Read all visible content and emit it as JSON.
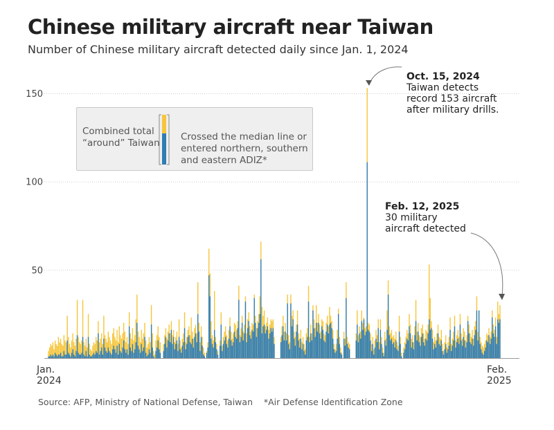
{
  "title": "Chinese military aircraft near Taiwan",
  "subtitle": "Number of Chinese military aircraft detected daily since Jan. 1, 2024",
  "legend": {
    "total_label_1": "Combined total",
    "total_label_2": "“around” Taiwan",
    "adiz_label_1": "Crossed the median line or",
    "adiz_label_2": "entered northern, southern",
    "adiz_label_3": "and eastern ADIZ*"
  },
  "annotations": {
    "oct": {
      "date": "Oct. 15, 2024",
      "line1": "Taiwan detects",
      "line2": "record 153 aircraft",
      "line3": "after military drills."
    },
    "feb": {
      "date": "Feb. 12, 2025",
      "line1": "30 military",
      "line2": "aircraft detected"
    }
  },
  "x_labels": {
    "start_1": "Jan.",
    "start_2": "2024",
    "end_1": "Feb.",
    "end_2": "2025"
  },
  "source": "Source: AFP, Ministry of National Defense, Taiwan    *Air Defense Identification Zone",
  "colors": {
    "total": "#f6c53a",
    "adiz": "#2f7db5",
    "grid": "#cccccc"
  },
  "chart_data": {
    "type": "bar",
    "stacked_overlay": true,
    "x_start": "2024-01-01",
    "x_end": "2025-02-12",
    "ylim": [
      0,
      155
    ],
    "yticks": [
      50,
      100,
      150
    ],
    "grid": true,
    "series": [
      {
        "name": "Combined total “around” Taiwan",
        "values": [
          4,
          6,
          8,
          7,
          9,
          5,
          10,
          8,
          7,
          12,
          9,
          11,
          8,
          7,
          13,
          10,
          9,
          24,
          12,
          8,
          6,
          10,
          14,
          9,
          7,
          11,
          33,
          12,
          9,
          8,
          10,
          33,
          9,
          7,
          11,
          6,
          25,
          8,
          5,
          4,
          7,
          9,
          8,
          12,
          10,
          21,
          9,
          11,
          14,
          8,
          24,
          13,
          11,
          9,
          15,
          12,
          10,
          8,
          14,
          17,
          12,
          10,
          16,
          9,
          18,
          13,
          11,
          14,
          20,
          15,
          9,
          12,
          8,
          26,
          14,
          11,
          17,
          10,
          13,
          22,
          36,
          15,
          12,
          9,
          16,
          11,
          14,
          20,
          10,
          6,
          8,
          12,
          9,
          30,
          14,
          4,
          2,
          10,
          13,
          18,
          12,
          9,
          0,
          0,
          8,
          13,
          17,
          11,
          15,
          19,
          14,
          21,
          13,
          16,
          9,
          12,
          15,
          8,
          22,
          10,
          6,
          11,
          14,
          26,
          9,
          12,
          16,
          18,
          13,
          23,
          15,
          11,
          17,
          19,
          14,
          43,
          20,
          9,
          18,
          12,
          6,
          3,
          0,
          4,
          9,
          62,
          48,
          21,
          13,
          10,
          38,
          12,
          8,
          4,
          0,
          10,
          26,
          7,
          12,
          15,
          18,
          13,
          10,
          16,
          23,
          15,
          11,
          14,
          20,
          19,
          16,
          21,
          41,
          13,
          17,
          24,
          15,
          19,
          35,
          14,
          22,
          26,
          18,
          15,
          20,
          19,
          36,
          24,
          17,
          21,
          25,
          35,
          66,
          29,
          24,
          27,
          18,
          20,
          23,
          16,
          19,
          22,
          21,
          22,
          12,
          0,
          0,
          0,
          0,
          0,
          12,
          18,
          24,
          15,
          20,
          14,
          36,
          13,
          9,
          36,
          24,
          27,
          15,
          12,
          19,
          27,
          14,
          11,
          16,
          9,
          12,
          8,
          5,
          14,
          17,
          41,
          12,
          19,
          14,
          30,
          22,
          17,
          30,
          20,
          25,
          19,
          15,
          22,
          21,
          14,
          13,
          20,
          24,
          18,
          29,
          24,
          21,
          16,
          8,
          5,
          8,
          16,
          28,
          12,
          6,
          3,
          0,
          15,
          11,
          43,
          12,
          9,
          8,
          0,
          0,
          0,
          0,
          0,
          14,
          27,
          13,
          18,
          15,
          27,
          20,
          23,
          17,
          18,
          153,
          20,
          19,
          14,
          8,
          12,
          5,
          10,
          16,
          13,
          22,
          9,
          22,
          12,
          6,
          3,
          15,
          11,
          27,
          44,
          18,
          14,
          16,
          12,
          13,
          11,
          15,
          9,
          7,
          24,
          12,
          3,
          0,
          6,
          9,
          12,
          16,
          14,
          25,
          19,
          11,
          13,
          9,
          18,
          33,
          15,
          20,
          13,
          12,
          17,
          19,
          14,
          11,
          16,
          15,
          19,
          53,
          34,
          21,
          16,
          9,
          12,
          10,
          14,
          19,
          12,
          11,
          16,
          8,
          4,
          9,
          13,
          6,
          9,
          12,
          23,
          8,
          11,
          15,
          24,
          10,
          13,
          16,
          12,
          25,
          14,
          11,
          17,
          15,
          10,
          13,
          24,
          19,
          14,
          12,
          16,
          11,
          18,
          21,
          35,
          15,
          27,
          12,
          9,
          7,
          6,
          8,
          10,
          14,
          13,
          17,
          12,
          15,
          27,
          19,
          16,
          23,
          12,
          32,
          25,
          30
        ]
      },
      {
        "name": "Crossed the median line or entered northern, southern and eastern ADIZ*",
        "values": [
          1,
          1,
          2,
          1,
          2,
          1,
          3,
          2,
          1,
          2,
          2,
          3,
          1,
          1,
          4,
          2,
          2,
          10,
          3,
          2,
          1,
          3,
          5,
          2,
          1,
          4,
          13,
          3,
          2,
          2,
          3,
          12,
          2,
          1,
          4,
          1,
          12,
          2,
          1,
          1,
          2,
          3,
          2,
          4,
          3,
          14,
          2,
          4,
          6,
          2,
          11,
          6,
          4,
          3,
          6,
          4,
          3,
          2,
          5,
          7,
          5,
          3,
          7,
          2,
          8,
          4,
          3,
          6,
          10,
          5,
          3,
          5,
          2,
          18,
          6,
          4,
          8,
          3,
          5,
          9,
          20,
          7,
          5,
          3,
          8,
          4,
          6,
          12,
          3,
          1,
          2,
          5,
          3,
          19,
          6,
          1,
          0,
          4,
          6,
          10,
          5,
          3,
          0,
          0,
          4,
          8,
          12,
          6,
          10,
          14,
          9,
          16,
          8,
          12,
          5,
          8,
          10,
          4,
          12,
          5,
          3,
          7,
          9,
          17,
          5,
          8,
          12,
          13,
          9,
          8,
          11,
          6,
          12,
          14,
          9,
          25,
          15,
          4,
          12,
          7,
          2,
          1,
          0,
          3,
          6,
          47,
          35,
          11,
          8,
          6,
          16,
          9,
          5,
          2,
          0,
          7,
          19,
          4,
          8,
          10,
          12,
          8,
          6,
          11,
          18,
          10,
          7,
          9,
          15,
          12,
          11,
          17,
          33,
          9,
          12,
          20,
          10,
          14,
          32,
          9,
          17,
          21,
          13,
          11,
          16,
          15,
          34,
          20,
          12,
          17,
          20,
          25,
          56,
          14,
          18,
          19,
          14,
          16,
          18,
          11,
          14,
          17,
          15,
          17,
          8,
          0,
          0,
          0,
          0,
          0,
          9,
          13,
          18,
          10,
          15,
          10,
          31,
          8,
          5,
          31,
          18,
          22,
          11,
          7,
          15,
          19,
          10,
          6,
          11,
          5,
          8,
          4,
          2,
          10,
          12,
          32,
          9,
          14,
          10,
          27,
          17,
          12,
          20,
          15,
          20,
          14,
          11,
          18,
          16,
          10,
          9,
          15,
          19,
          14,
          19,
          20,
          17,
          11,
          5,
          3,
          4,
          11,
          25,
          8,
          3,
          2,
          0,
          11,
          7,
          34,
          8,
          6,
          5,
          0,
          0,
          0,
          0,
          0,
          10,
          19,
          9,
          14,
          11,
          21,
          16,
          22,
          13,
          15,
          111,
          16,
          15,
          10,
          4,
          8,
          2,
          6,
          11,
          9,
          17,
          5,
          16,
          8,
          3,
          1,
          10,
          7,
          16,
          36,
          13,
          10,
          11,
          8,
          9,
          6,
          10,
          5,
          4,
          15,
          8,
          1,
          0,
          3,
          5,
          8,
          11,
          10,
          18,
          14,
          6,
          9,
          5,
          13,
          21,
          10,
          15,
          9,
          7,
          12,
          14,
          9,
          7,
          11,
          10,
          14,
          22,
          16,
          17,
          11,
          5,
          8,
          6,
          10,
          14,
          8,
          7,
          10,
          4,
          2,
          5,
          8,
          3,
          5,
          7,
          16,
          4,
          7,
          10,
          18,
          6,
          9,
          11,
          8,
          19,
          10,
          7,
          12,
          10,
          6,
          9,
          21,
          14,
          9,
          8,
          11,
          7,
          13,
          16,
          27,
          10,
          27,
          8,
          5,
          3,
          2,
          4,
          6,
          10,
          9,
          13,
          8,
          11,
          23,
          14,
          12,
          18,
          8,
          22,
          20,
          22
        ]
      }
    ]
  }
}
